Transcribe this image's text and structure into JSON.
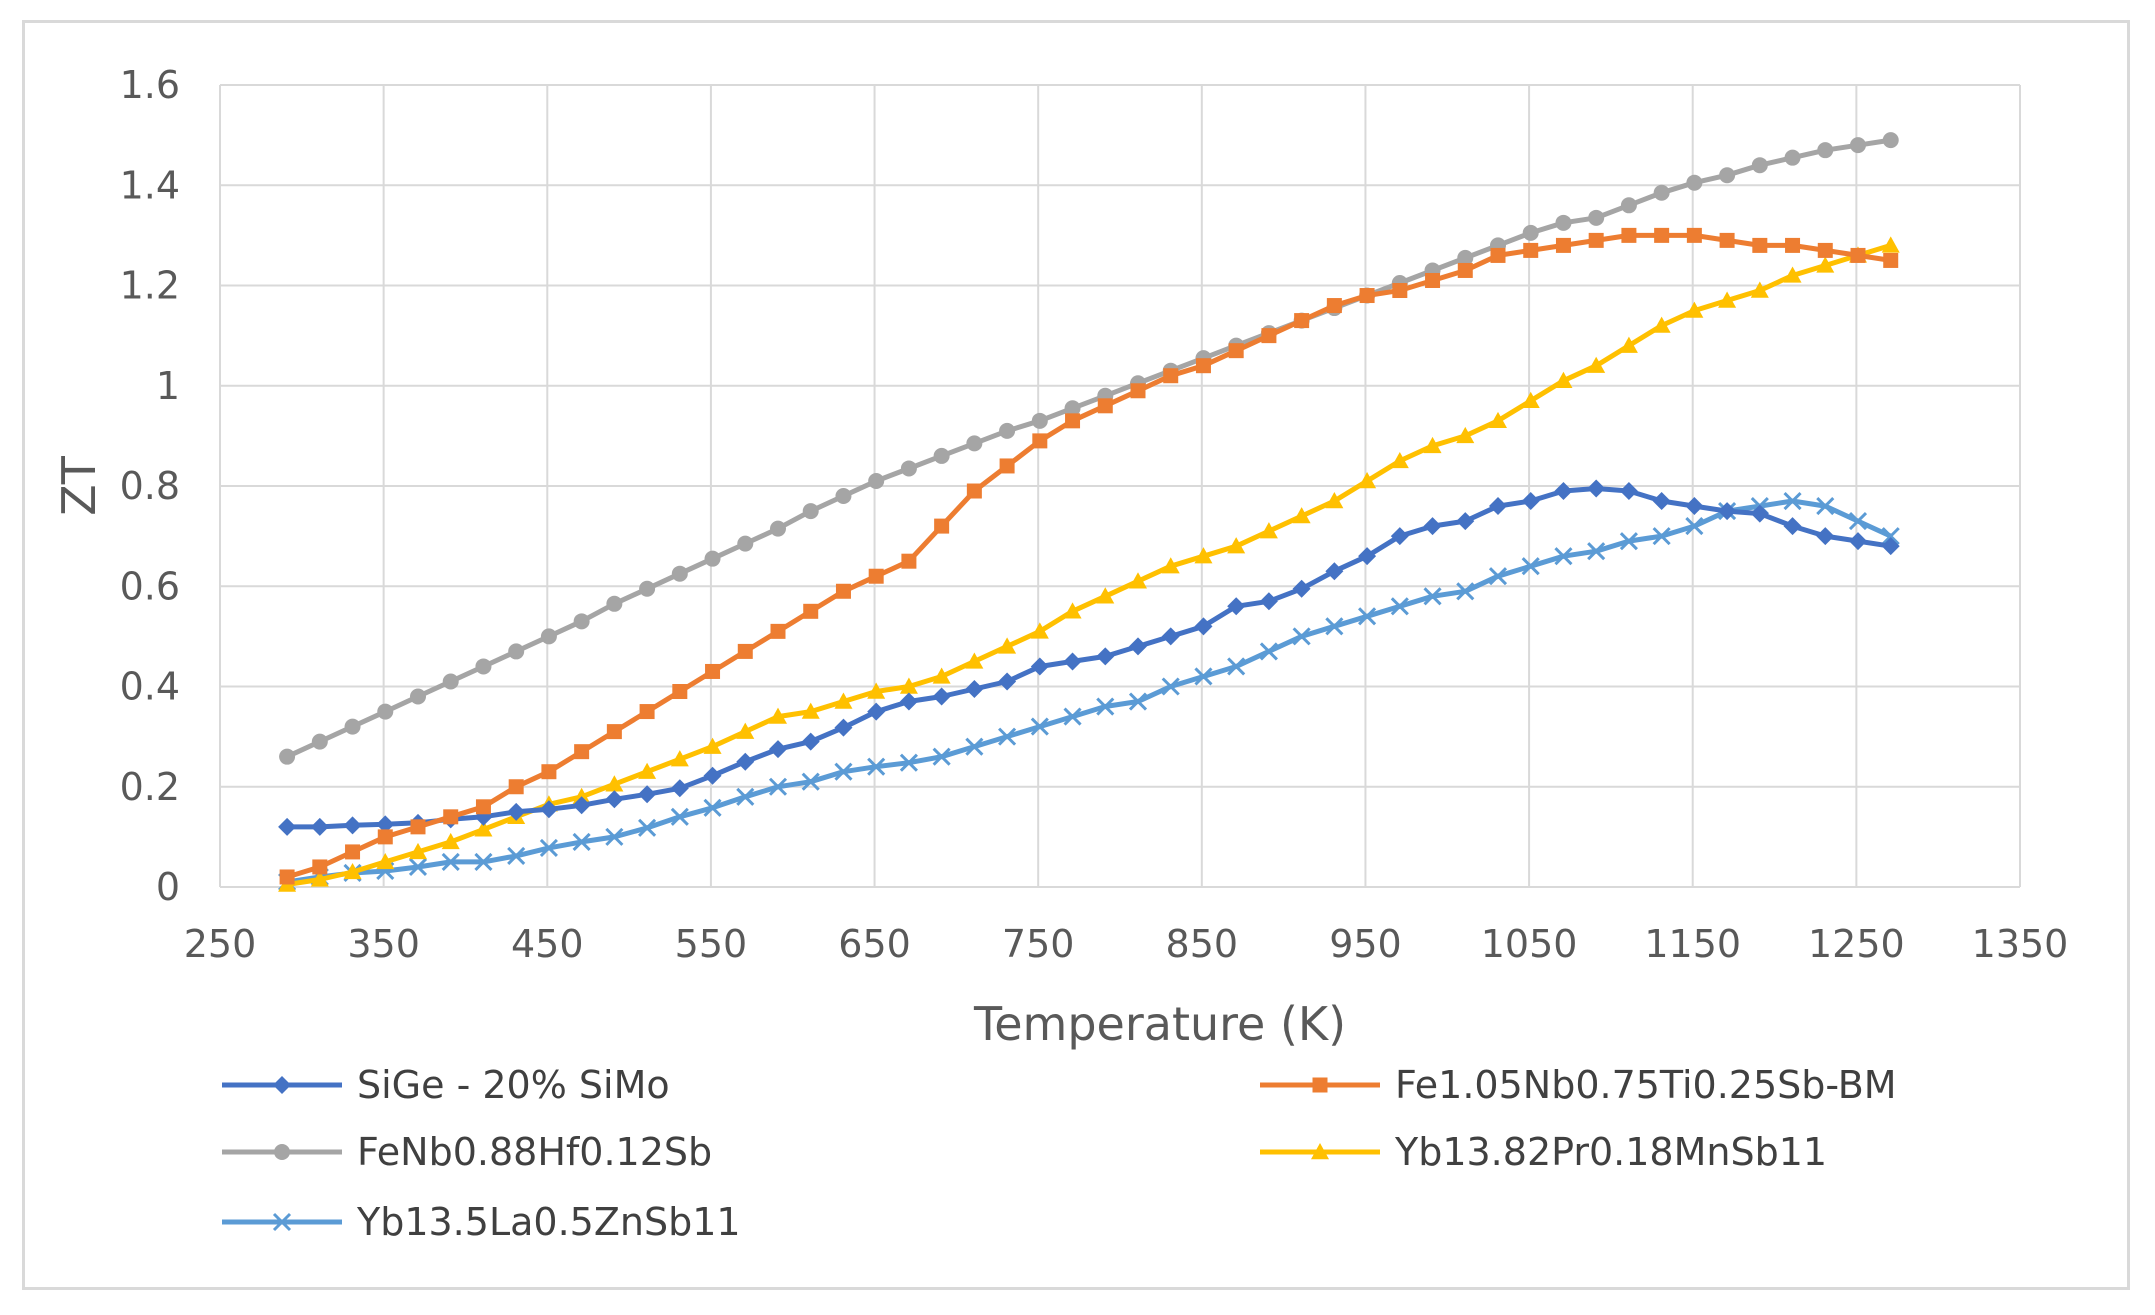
{
  "chart_data": {
    "type": "line",
    "title": "",
    "xlabel": "Temperature (K)",
    "ylabel": "ZT",
    "xlim": [
      250,
      1350
    ],
    "ylim": [
      0,
      1.6
    ],
    "grid": true,
    "legend_position": "bottom",
    "x_ticks": [
      "250",
      "350",
      "450",
      "550",
      "650",
      "750",
      "850",
      "950",
      "1050",
      "1150",
      "1250",
      "1350"
    ],
    "y_ticks": [
      "0",
      "0.2",
      "0.4",
      "0.6",
      "0.8",
      "1",
      "1.2",
      "1.4",
      "1.6"
    ],
    "series": [
      {
        "name": "SiGe - 20% SiMo",
        "color": "#4472c4",
        "marker": "diamond",
        "x": [
          291,
          311,
          331,
          351,
          371,
          391,
          411,
          431,
          451,
          471,
          491,
          511,
          531,
          551,
          571,
          591,
          611,
          631,
          651,
          671,
          691,
          711,
          731,
          751,
          771,
          791,
          811,
          831,
          851,
          871,
          891,
          911,
          931,
          951,
          971,
          991,
          1011,
          1031,
          1051,
          1071,
          1091,
          1111,
          1131,
          1151,
          1171,
          1191,
          1211,
          1231,
          1251,
          1271
        ],
        "y": [
          0.12,
          0.12,
          0.123,
          0.125,
          0.128,
          0.135,
          0.14,
          0.15,
          0.155,
          0.163,
          0.175,
          0.185,
          0.197,
          0.222,
          0.25,
          0.275,
          0.29,
          0.318,
          0.35,
          0.37,
          0.38,
          0.395,
          0.41,
          0.44,
          0.45,
          0.46,
          0.48,
          0.5,
          0.52,
          0.56,
          0.57,
          0.595,
          0.63,
          0.66,
          0.7,
          0.72,
          0.73,
          0.76,
          0.77,
          0.79,
          0.795,
          0.79,
          0.77,
          0.76,
          0.75,
          0.745,
          0.72,
          0.7,
          0.69,
          0.68
        ]
      },
      {
        "name": "Fe1.05Nb0.75Ti0.25Sb-BM",
        "color": "#ed7d31",
        "marker": "square",
        "x": [
          291,
          311,
          331,
          351,
          371,
          391,
          411,
          431,
          451,
          471,
          491,
          511,
          531,
          551,
          571,
          591,
          611,
          631,
          651,
          671,
          691,
          711,
          731,
          751,
          771,
          791,
          811,
          831,
          851,
          871,
          891,
          911,
          931,
          951,
          971,
          991,
          1011,
          1031,
          1051,
          1071,
          1091,
          1111,
          1131,
          1151,
          1171,
          1191,
          1211,
          1231,
          1251,
          1271
        ],
        "y": [
          0.02,
          0.04,
          0.07,
          0.1,
          0.12,
          0.14,
          0.16,
          0.2,
          0.23,
          0.27,
          0.31,
          0.35,
          0.39,
          0.43,
          0.47,
          0.51,
          0.55,
          0.59,
          0.62,
          0.65,
          0.72,
          0.79,
          0.84,
          0.89,
          0.93,
          0.96,
          0.99,
          1.02,
          1.04,
          1.07,
          1.1,
          1.13,
          1.16,
          1.18,
          1.19,
          1.21,
          1.23,
          1.26,
          1.27,
          1.28,
          1.29,
          1.3,
          1.3,
          1.3,
          1.29,
          1.28,
          1.28,
          1.27,
          1.26,
          1.25
        ]
      },
      {
        "name": "FeNb0.88Hf0.12Sb",
        "color": "#a5a5a5",
        "marker": "circle",
        "x": [
          291,
          311,
          331,
          351,
          371,
          391,
          411,
          431,
          451,
          471,
          491,
          511,
          531,
          551,
          571,
          591,
          611,
          631,
          651,
          671,
          691,
          711,
          731,
          751,
          771,
          791,
          811,
          831,
          851,
          871,
          891,
          911,
          931,
          951,
          971,
          991,
          1011,
          1031,
          1051,
          1071,
          1091,
          1111,
          1131,
          1151,
          1171,
          1191,
          1211,
          1231,
          1251,
          1271
        ],
        "y": [
          0.26,
          0.29,
          0.32,
          0.35,
          0.38,
          0.41,
          0.44,
          0.47,
          0.5,
          0.53,
          0.565,
          0.595,
          0.625,
          0.655,
          0.685,
          0.715,
          0.75,
          0.78,
          0.81,
          0.835,
          0.86,
          0.885,
          0.91,
          0.93,
          0.955,
          0.98,
          1.005,
          1.03,
          1.055,
          1.08,
          1.105,
          1.13,
          1.155,
          1.18,
          1.205,
          1.23,
          1.255,
          1.28,
          1.305,
          1.325,
          1.335,
          1.36,
          1.385,
          1.405,
          1.42,
          1.44,
          1.455,
          1.47,
          1.48,
          1.49
        ]
      },
      {
        "name": "Yb13.82Pr0.18MnSb11",
        "color": "#ffc000",
        "marker": "triangle",
        "x": [
          291,
          311,
          331,
          351,
          371,
          391,
          411,
          431,
          451,
          471,
          491,
          511,
          531,
          551,
          571,
          591,
          611,
          631,
          651,
          671,
          691,
          711,
          731,
          751,
          771,
          791,
          811,
          831,
          851,
          871,
          891,
          911,
          931,
          951,
          971,
          991,
          1011,
          1031,
          1051,
          1071,
          1091,
          1111,
          1131,
          1151,
          1171,
          1191,
          1211,
          1231,
          1251,
          1271
        ],
        "y": [
          0.005,
          0.015,
          0.03,
          0.05,
          0.07,
          0.09,
          0.115,
          0.14,
          0.165,
          0.18,
          0.205,
          0.23,
          0.255,
          0.28,
          0.31,
          0.34,
          0.35,
          0.37,
          0.39,
          0.4,
          0.42,
          0.45,
          0.48,
          0.51,
          0.55,
          0.58,
          0.61,
          0.64,
          0.66,
          0.68,
          0.71,
          0.74,
          0.77,
          0.81,
          0.85,
          0.88,
          0.9,
          0.93,
          0.97,
          1.01,
          1.04,
          1.08,
          1.12,
          1.15,
          1.17,
          1.19,
          1.22,
          1.24,
          1.26,
          1.28
        ]
      },
      {
        "name": "Yb13.5La0.5ZnSb11",
        "color": "#5b9bd5",
        "marker": "x",
        "x": [
          291,
          311,
          331,
          351,
          371,
          391,
          411,
          431,
          451,
          471,
          491,
          511,
          531,
          551,
          571,
          591,
          611,
          631,
          651,
          671,
          691,
          711,
          731,
          751,
          771,
          791,
          811,
          831,
          851,
          871,
          891,
          911,
          931,
          951,
          971,
          991,
          1011,
          1031,
          1051,
          1071,
          1091,
          1111,
          1131,
          1151,
          1171,
          1191,
          1211,
          1231,
          1251,
          1271
        ],
        "y": [
          0.01,
          0.02,
          0.028,
          0.032,
          0.04,
          0.05,
          0.05,
          0.062,
          0.078,
          0.09,
          0.1,
          0.118,
          0.14,
          0.158,
          0.18,
          0.2,
          0.21,
          0.23,
          0.24,
          0.248,
          0.26,
          0.28,
          0.3,
          0.32,
          0.34,
          0.36,
          0.37,
          0.4,
          0.42,
          0.44,
          0.47,
          0.5,
          0.52,
          0.54,
          0.56,
          0.58,
          0.59,
          0.62,
          0.64,
          0.66,
          0.67,
          0.69,
          0.7,
          0.72,
          0.75,
          0.76,
          0.77,
          0.76,
          0.73,
          0.7
        ]
      }
    ]
  }
}
